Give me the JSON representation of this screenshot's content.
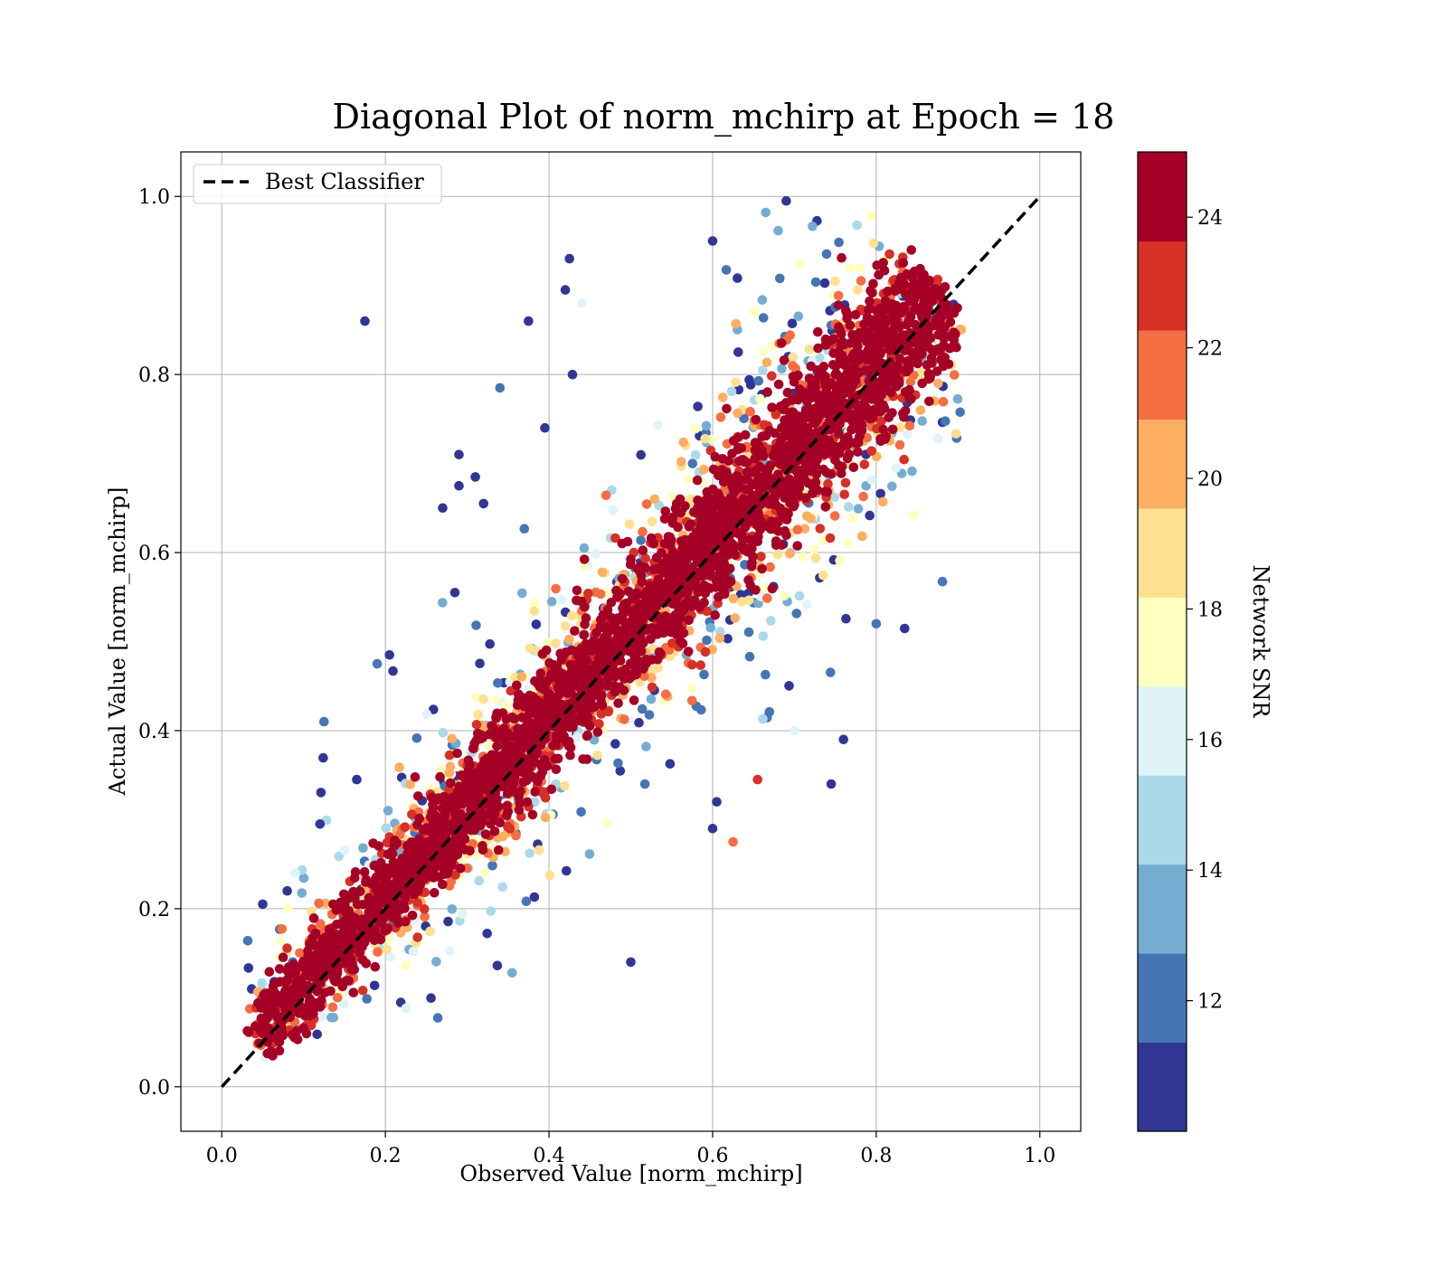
{
  "chart_data": {
    "type": "scatter",
    "title": "Diagonal Plot of norm_mchirp at Epoch = 18",
    "xlabel": "Observed Value [norm_mchirp]",
    "ylabel": "Actual Value [norm_mchirp]",
    "xlim": [
      -0.05,
      1.05
    ],
    "ylim": [
      -0.05,
      1.05
    ],
    "x_ticks": [
      0.0,
      0.2,
      0.4,
      0.6,
      0.8,
      1.0
    ],
    "y_ticks": [
      0.0,
      0.2,
      0.4,
      0.6,
      0.8,
      1.0
    ],
    "x_tick_labels": [
      "0.0",
      "0.2",
      "0.4",
      "0.6",
      "0.8",
      "1.0"
    ],
    "y_tick_labels": [
      "0.0",
      "0.2",
      "0.4",
      "0.6",
      "0.8",
      "1.0"
    ],
    "grid": true,
    "legend": {
      "placement": "top-left",
      "entries": [
        "Best Classifier"
      ]
    },
    "reference_line": {
      "name": "Best Classifier",
      "style": "dashed",
      "color": "#000000",
      "x": [
        0.0,
        1.0
      ],
      "y": [
        0.0,
        1.0
      ]
    },
    "colorbar": {
      "label": "Network SNR",
      "range": [
        10,
        25
      ],
      "ticks": [
        12,
        14,
        16,
        18,
        20,
        22,
        24
      ],
      "tick_labels": [
        "12",
        "14",
        "16",
        "18",
        "20",
        "22",
        "24"
      ],
      "colormap": "RdYlBu_r",
      "colors": [
        "#313695",
        "#4575b4",
        "#74add1",
        "#abd9e9",
        "#e0f3f8",
        "#ffffbf",
        "#fee090",
        "#fdae61",
        "#f46d43",
        "#d73027",
        "#a50026"
      ]
    },
    "outliers": [
      {
        "x": 0.175,
        "y": 0.86,
        "snr": 10.5
      },
      {
        "x": 0.375,
        "y": 0.86,
        "snr": 10.5
      },
      {
        "x": 0.34,
        "y": 0.785,
        "snr": 11.5
      },
      {
        "x": 0.125,
        "y": 0.41,
        "snr": 12.5
      },
      {
        "x": 0.355,
        "y": 0.128,
        "snr": 13.5
      },
      {
        "x": 0.225,
        "y": 0.088,
        "snr": 15.5
      },
      {
        "x": 0.76,
        "y": 0.39,
        "snr": 10.5
      },
      {
        "x": 0.745,
        "y": 0.34,
        "snr": 10.5
      },
      {
        "x": 0.8,
        "y": 0.52,
        "snr": 12.5
      },
      {
        "x": 0.6,
        "y": 0.29,
        "snr": 10.5
      },
      {
        "x": 0.605,
        "y": 0.32,
        "snr": 10.5
      },
      {
        "x": 0.625,
        "y": 0.275,
        "snr": 21.5
      },
      {
        "x": 0.655,
        "y": 0.345,
        "snr": 22.5
      },
      {
        "x": 0.7,
        "y": 0.4,
        "snr": 15.5
      },
      {
        "x": 0.29,
        "y": 0.71,
        "snr": 10.5
      },
      {
        "x": 0.29,
        "y": 0.675,
        "snr": 10.5
      },
      {
        "x": 0.27,
        "y": 0.65,
        "snr": 10.5
      },
      {
        "x": 0.31,
        "y": 0.685,
        "snr": 10.5
      },
      {
        "x": 0.32,
        "y": 0.655,
        "snr": 10.5
      },
      {
        "x": 0.425,
        "y": 0.93,
        "snr": 10.5
      },
      {
        "x": 0.42,
        "y": 0.895,
        "snr": 10.5
      },
      {
        "x": 0.44,
        "y": 0.88,
        "snr": 15.5
      },
      {
        "x": 0.6,
        "y": 0.95,
        "snr": 10.5
      },
      {
        "x": 0.69,
        "y": 0.995,
        "snr": 10.5
      },
      {
        "x": 0.395,
        "y": 0.74,
        "snr": 10.5
      },
      {
        "x": 0.19,
        "y": 0.475,
        "snr": 11.5
      },
      {
        "x": 0.205,
        "y": 0.485,
        "snr": 10.5
      },
      {
        "x": 0.285,
        "y": 0.555,
        "snr": 10.5
      },
      {
        "x": 0.05,
        "y": 0.205,
        "snr": 10.5
      },
      {
        "x": 0.08,
        "y": 0.22,
        "snr": 10.5
      },
      {
        "x": 0.12,
        "y": 0.295,
        "snr": 10.5
      },
      {
        "x": 0.165,
        "y": 0.345,
        "snr": 10.5
      },
      {
        "x": 0.5,
        "y": 0.14,
        "snr": 10.5
      }
    ]
  }
}
